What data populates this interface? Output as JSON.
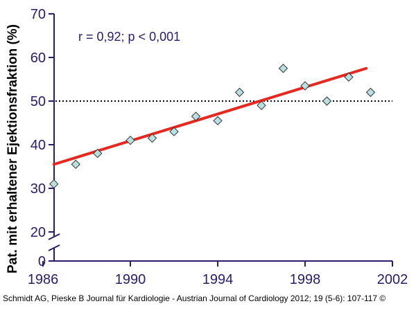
{
  "chart_data": {
    "type": "scatter",
    "ylabel": "Pat. mit erhaltener Ejektionsfraktion (%)",
    "xlabel": "",
    "xlim": [
      1986,
      2002
    ],
    "ylim": [
      20,
      70
    ],
    "y_axis_break": true,
    "y_zero_label": "0",
    "x_ticks": [
      1986,
      1990,
      1994,
      1998,
      2002
    ],
    "y_ticks": [
      20,
      30,
      40,
      50,
      60,
      70
    ],
    "annotation": "r = 0,92;  p < 0,001",
    "reference_line": {
      "y": 50,
      "style": "dotted",
      "color": "#000000"
    },
    "points": [
      {
        "x": 1986.5,
        "y": 31
      },
      {
        "x": 1987.5,
        "y": 35.5
      },
      {
        "x": 1988.5,
        "y": 38
      },
      {
        "x": 1990,
        "y": 41
      },
      {
        "x": 1991,
        "y": 41.5
      },
      {
        "x": 1992,
        "y": 43
      },
      {
        "x": 1993,
        "y": 46.5
      },
      {
        "x": 1994,
        "y": 45.5
      },
      {
        "x": 1995,
        "y": 52
      },
      {
        "x": 1996,
        "y": 49
      },
      {
        "x": 1997,
        "y": 57.5
      },
      {
        "x": 1998,
        "y": 53.5
      },
      {
        "x": 1999,
        "y": 50
      },
      {
        "x": 2000,
        "y": 55.5
      },
      {
        "x": 2001,
        "y": 52
      }
    ],
    "trend_line": {
      "x": [
        1986.5,
        2000.8
      ],
      "y": [
        35.5,
        57.5
      ],
      "color": "#e8281e"
    },
    "marker_color": "#b9dfe0",
    "marker_stroke": "#333333",
    "axis_color": "#2b1a6b"
  },
  "caption": "Schmidt AG, Pieske B Journal für Kardiologie - Austrian Journal of Cardiology 2012; 19 (5-6): 107-117 ©"
}
